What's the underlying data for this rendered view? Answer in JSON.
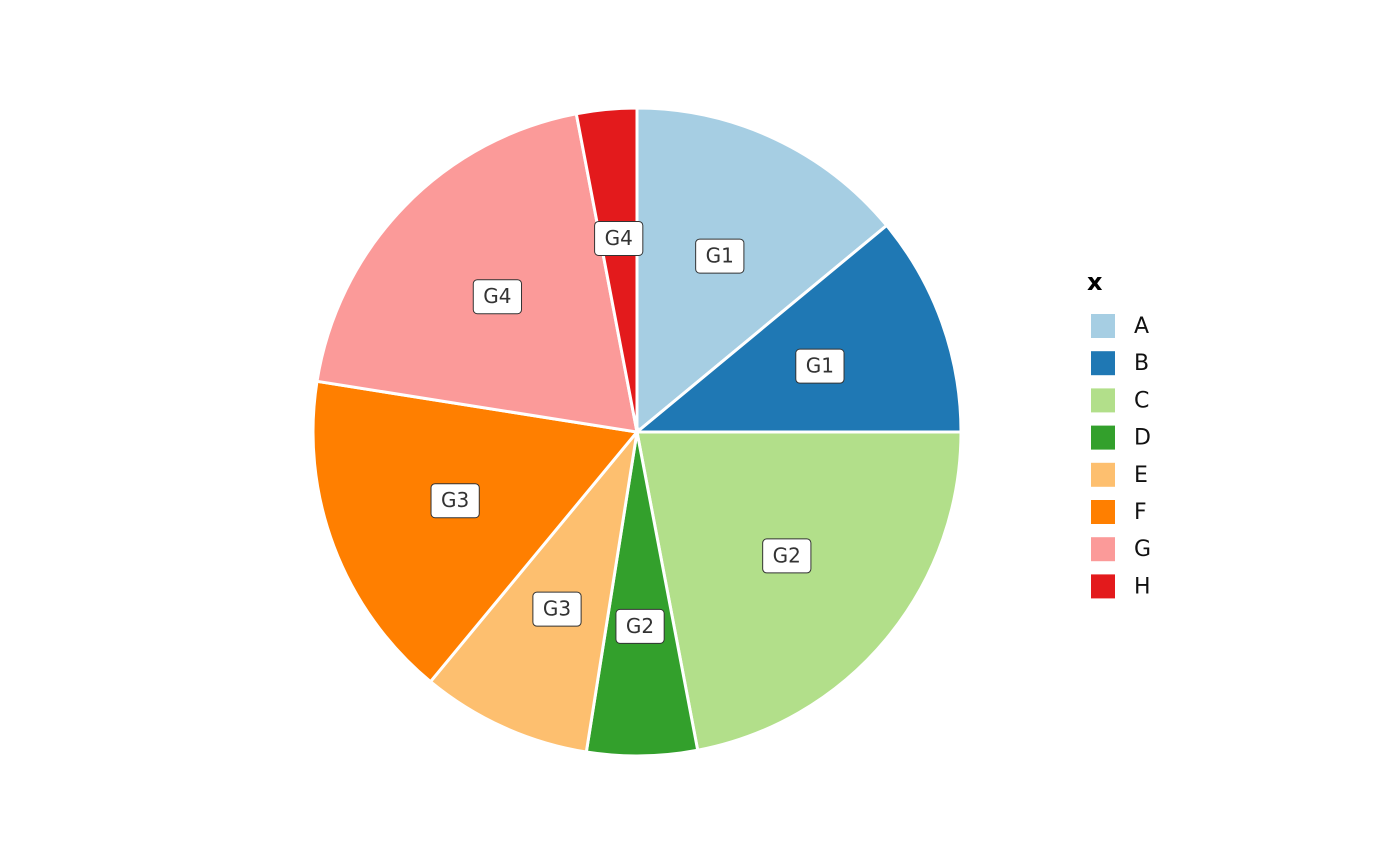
{
  "chart_data": {
    "type": "pie",
    "legend_title": "x",
    "categories": [
      "A",
      "B",
      "C",
      "D",
      "E",
      "F",
      "G",
      "H"
    ],
    "values": [
      14,
      11,
      22,
      5.5,
      8.5,
      16.5,
      19.5,
      3
    ],
    "labels": [
      "G1",
      "G1",
      "G2",
      "G2",
      "G3",
      "G3",
      "G4",
      "G4"
    ],
    "colors": [
      "#a6cee3",
      "#1f78b4",
      "#b2df8a",
      "#33a02c",
      "#fdbf6f",
      "#ff7f00",
      "#fb9a99",
      "#e31a1c"
    ],
    "legend": "right"
  }
}
